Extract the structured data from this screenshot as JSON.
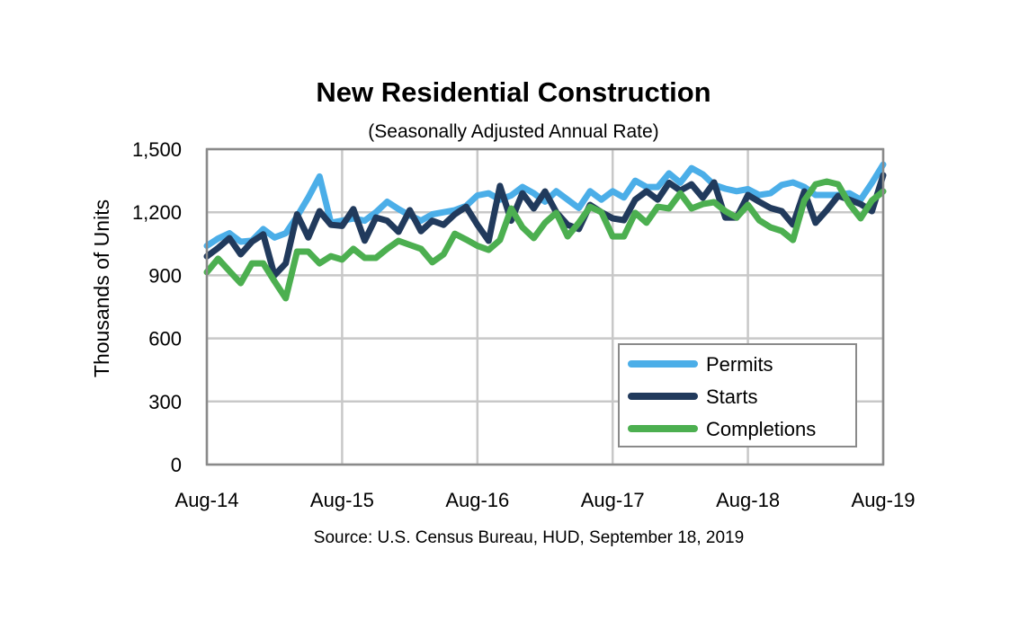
{
  "chart_data": {
    "type": "line",
    "title": "New Residential Construction",
    "subtitle": "(Seasonally Adjusted Annual Rate)",
    "ylabel": "Thousands of Units",
    "xlabel": "",
    "source": "Source:  U.S. Census Bureau, HUD, September 18, 2019",
    "ylim": [
      0,
      1500
    ],
    "yticks": [
      0,
      300,
      600,
      900,
      1200,
      1500
    ],
    "ytick_labels": [
      "0",
      "300",
      "600",
      "900",
      "1,200",
      "1,500"
    ],
    "x_start": "Aug-14",
    "x_end": "Aug-19",
    "x_frequency": "monthly",
    "xtick_labels": [
      "Aug-14",
      "Aug-15",
      "Aug-16",
      "Aug-17",
      "Aug-18",
      "Aug-19"
    ],
    "grid": true,
    "legend_position": "bottom-right",
    "series": [
      {
        "name": "Permits",
        "color": "#4BAEE8",
        "values": [
          1040,
          1075,
          1100,
          1060,
          1065,
          1120,
          1080,
          1100,
          1180,
          1270,
          1370,
          1150,
          1160,
          1170,
          1160,
          1200,
          1250,
          1215,
          1185,
          1160,
          1190,
          1200,
          1210,
          1230,
          1280,
          1290,
          1260,
          1280,
          1320,
          1290,
          1250,
          1300,
          1260,
          1220,
          1300,
          1260,
          1300,
          1270,
          1350,
          1320,
          1320,
          1385,
          1340,
          1410,
          1380,
          1330,
          1312,
          1300,
          1310,
          1282,
          1290,
          1330,
          1342,
          1320,
          1282,
          1282,
          1282,
          1290,
          1260,
          1340,
          1427
        ]
      },
      {
        "name": "Starts",
        "color": "#213A5C",
        "values": [
          990,
          1030,
          1077,
          1000,
          1060,
          1095,
          900,
          957,
          1190,
          1080,
          1205,
          1140,
          1135,
          1215,
          1065,
          1175,
          1160,
          1107,
          1210,
          1110,
          1160,
          1140,
          1190,
          1226,
          1140,
          1064,
          1325,
          1160,
          1290,
          1218,
          1299,
          1200,
          1140,
          1120,
          1235,
          1200,
          1171,
          1162,
          1260,
          1300,
          1260,
          1340,
          1303,
          1333,
          1269,
          1342,
          1175,
          1175,
          1282,
          1250,
          1220,
          1205,
          1141,
          1299,
          1150,
          1210,
          1278,
          1260,
          1239,
          1205,
          1376
        ]
      },
      {
        "name": "Completions",
        "color": "#4CAF50",
        "values": [
          915,
          979,
          920,
          863,
          957,
          957,
          872,
          791,
          1013,
          1013,
          957,
          991,
          975,
          1026,
          983,
          983,
          1026,
          1064,
          1045,
          1026,
          962,
          1000,
          1098,
          1070,
          1040,
          1021,
          1068,
          1218,
          1128,
          1077,
          1150,
          1197,
          1085,
          1150,
          1226,
          1200,
          1085,
          1085,
          1197,
          1150,
          1226,
          1218,
          1290,
          1218,
          1239,
          1248,
          1205,
          1175,
          1235,
          1162,
          1128,
          1111,
          1068,
          1256,
          1333,
          1346,
          1333,
          1239,
          1171,
          1256,
          1299
        ]
      }
    ]
  }
}
